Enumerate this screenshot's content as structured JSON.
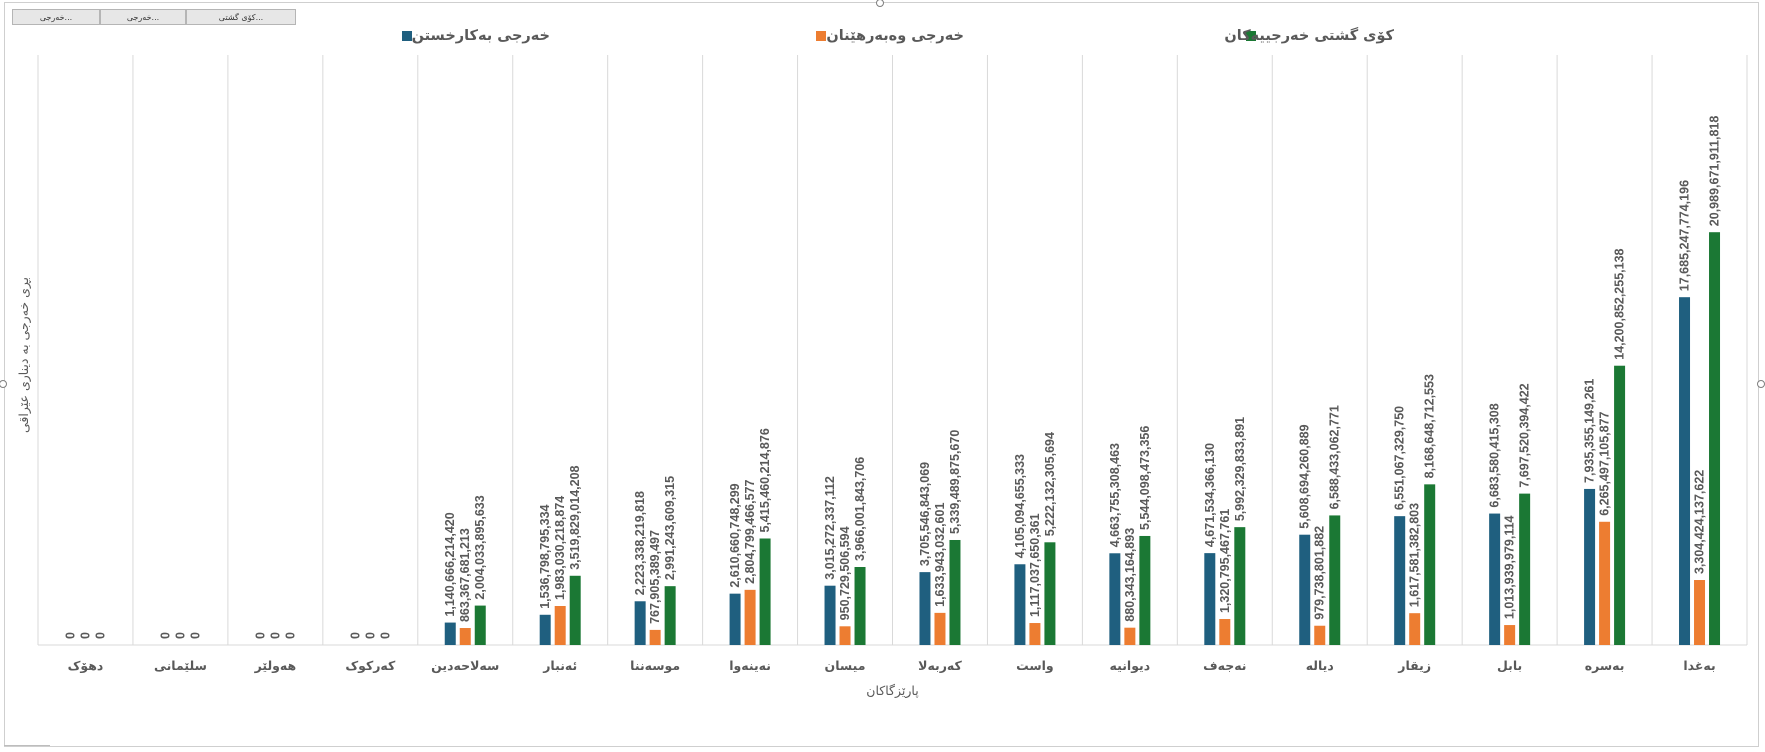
{
  "field_buttons": [
    {
      "label": "خەرجی...",
      "width": 86
    },
    {
      "label": "خەرجی...",
      "width": 84
    },
    {
      "label": "کۆی گشتی...",
      "width": 108
    }
  ],
  "chart_data": {
    "type": "bar",
    "ylabel": "بڕی خەرجی بە دیناری عێراقی",
    "xlabel": "پارێزگاکان",
    "legend_position": "top",
    "grid": "vertical category separators",
    "categories": [
      "دهۆک",
      "سلێمانی",
      "هەولێر",
      "کەرکوک",
      "سەلاحەدین",
      "ئەنبار",
      "موسەننا",
      "نەینەوا",
      "میسان",
      "کەربەلا",
      "واست",
      "دیوانیە",
      "نەجەف",
      "دیالە",
      "زیقار",
      "بابل",
      "بەسرە",
      "بەغدا"
    ],
    "ylim": [
      0,
      30000000000000
    ],
    "series": [
      {
        "name": "خەرجی بەکارخستن",
        "color": "#1f5f7f",
        "values": [
          0,
          0,
          0,
          0,
          1140666214420,
          1536798795334,
          2223338219818,
          2610660748299,
          3015272337112,
          3705546843069,
          4105094655333,
          4663755308463,
          4671534366130,
          5608694260889,
          6551067329750,
          6683580415308,
          7935355149261,
          17685247774196
        ]
      },
      {
        "name": "خەرجی وەبەرهێنان",
        "color": "#ed7d31",
        "values": [
          0,
          0,
          0,
          0,
          863367681213,
          1983030218874,
          767905389497,
          2804799466577,
          950729506594,
          1633943032601,
          1117037650361,
          880343164893,
          1320795467761,
          979738801882,
          1617581382803,
          1013939979114,
          6265497105877,
          3304424137622
        ]
      },
      {
        "name": "کۆی گشتی خەرجییەکان",
        "color": "#1b7834",
        "values": [
          0,
          0,
          0,
          0,
          2004033895633,
          3519829014208,
          2991243609315,
          5415460214876,
          3966001843706,
          5339489875670,
          5222132305694,
          5544098473356,
          5992329833891,
          6588433062771,
          8168648712553,
          7697520394422,
          14200852255138,
          20989671911818
        ]
      }
    ]
  }
}
